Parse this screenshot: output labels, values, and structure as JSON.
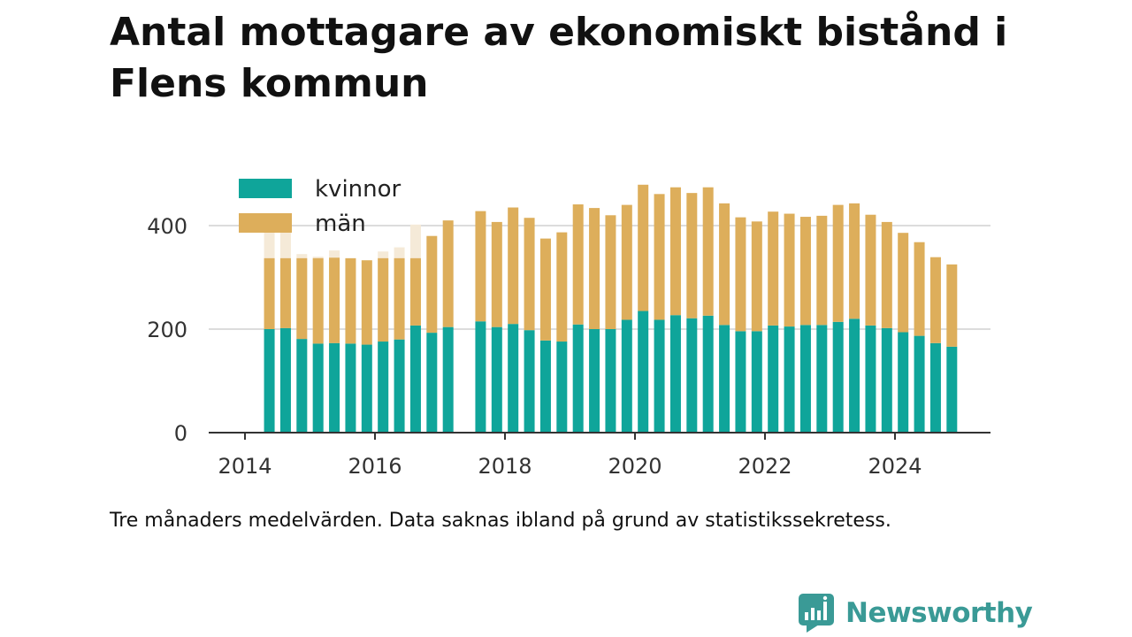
{
  "title": "Antal mottagare av ekonomiskt bistånd i Flens kommun",
  "caption": "Tre månaders medelvärden. Data saknas ibland på grund av statistikssekretess.",
  "brand": {
    "name": "Newsworthy",
    "color": "#3a9a96"
  },
  "chart_data": {
    "type": "bar",
    "stacked": true,
    "title": "Antal mottagare av ekonomiskt bistånd i Flens kommun",
    "xlabel": "",
    "ylabel": "",
    "xlim": [
      2013.6,
      2025.75
    ],
    "ylim": [
      0,
      500
    ],
    "x_ticks": [
      2014,
      2016,
      2018,
      2020,
      2022,
      2024
    ],
    "y_ticks": [
      0,
      200,
      400
    ],
    "grid": true,
    "legend_position": "top-left",
    "series": [
      {
        "name": "kvinnor",
        "color": "#0fa59a"
      },
      {
        "name": "män",
        "color": "#ddae5b"
      }
    ],
    "ghost_color": "#f5ead8",
    "bars": [
      {
        "x": 2014.375,
        "kvinnor": 200,
        "man": 137,
        "ghost": 400
      },
      {
        "x": 2014.625,
        "kvinnor": 202,
        "man": 135,
        "ghost": 400
      },
      {
        "x": 2014.875,
        "kvinnor": 181,
        "man": 156,
        "ghost": 345
      },
      {
        "x": 2015.125,
        "kvinnor": 172,
        "man": 165,
        "ghost": 340
      },
      {
        "x": 2015.375,
        "kvinnor": 173,
        "man": 165,
        "ghost": 352
      },
      {
        "x": 2015.625,
        "kvinnor": 172,
        "man": 165
      },
      {
        "x": 2015.875,
        "kvinnor": 170,
        "man": 163
      },
      {
        "x": 2016.125,
        "kvinnor": 176,
        "man": 161,
        "ghost": 350
      },
      {
        "x": 2016.375,
        "kvinnor": 180,
        "man": 157,
        "ghost": 358
      },
      {
        "x": 2016.625,
        "kvinnor": 207,
        "man": 130,
        "ghost": 402
      },
      {
        "x": 2016.875,
        "kvinnor": 193,
        "man": 187
      },
      {
        "x": 2017.125,
        "kvinnor": 204,
        "man": 206
      },
      {
        "x": 2017.625,
        "kvinnor": 215,
        "man": 213
      },
      {
        "x": 2017.875,
        "kvinnor": 204,
        "man": 203
      },
      {
        "x": 2018.125,
        "kvinnor": 210,
        "man": 225
      },
      {
        "x": 2018.375,
        "kvinnor": 198,
        "man": 217
      },
      {
        "x": 2018.625,
        "kvinnor": 178,
        "man": 197
      },
      {
        "x": 2018.875,
        "kvinnor": 176,
        "man": 211
      },
      {
        "x": 2019.125,
        "kvinnor": 209,
        "man": 232
      },
      {
        "x": 2019.375,
        "kvinnor": 200,
        "man": 234
      },
      {
        "x": 2019.625,
        "kvinnor": 200,
        "man": 220
      },
      {
        "x": 2019.875,
        "kvinnor": 218,
        "man": 222
      },
      {
        "x": 2020.125,
        "kvinnor": 235,
        "man": 244
      },
      {
        "x": 2020.375,
        "kvinnor": 218,
        "man": 243
      },
      {
        "x": 2020.625,
        "kvinnor": 227,
        "man": 247
      },
      {
        "x": 2020.875,
        "kvinnor": 221,
        "man": 242
      },
      {
        "x": 2021.125,
        "kvinnor": 226,
        "man": 248
      },
      {
        "x": 2021.375,
        "kvinnor": 208,
        "man": 235
      },
      {
        "x": 2021.625,
        "kvinnor": 196,
        "man": 220
      },
      {
        "x": 2021.875,
        "kvinnor": 196,
        "man": 212
      },
      {
        "x": 2022.125,
        "kvinnor": 207,
        "man": 220
      },
      {
        "x": 2022.375,
        "kvinnor": 205,
        "man": 218
      },
      {
        "x": 2022.625,
        "kvinnor": 208,
        "man": 209
      },
      {
        "x": 2022.875,
        "kvinnor": 208,
        "man": 211
      },
      {
        "x": 2023.125,
        "kvinnor": 214,
        "man": 226
      },
      {
        "x": 2023.375,
        "kvinnor": 220,
        "man": 223
      },
      {
        "x": 2023.625,
        "kvinnor": 207,
        "man": 214
      },
      {
        "x": 2023.875,
        "kvinnor": 202,
        "man": 205
      },
      {
        "x": 2024.125,
        "kvinnor": 194,
        "man": 192
      },
      {
        "x": 2024.375,
        "kvinnor": 187,
        "man": 181
      },
      {
        "x": 2024.625,
        "kvinnor": 173,
        "man": 166
      },
      {
        "x": 2024.875,
        "kvinnor": 166,
        "man": 159
      }
    ]
  }
}
